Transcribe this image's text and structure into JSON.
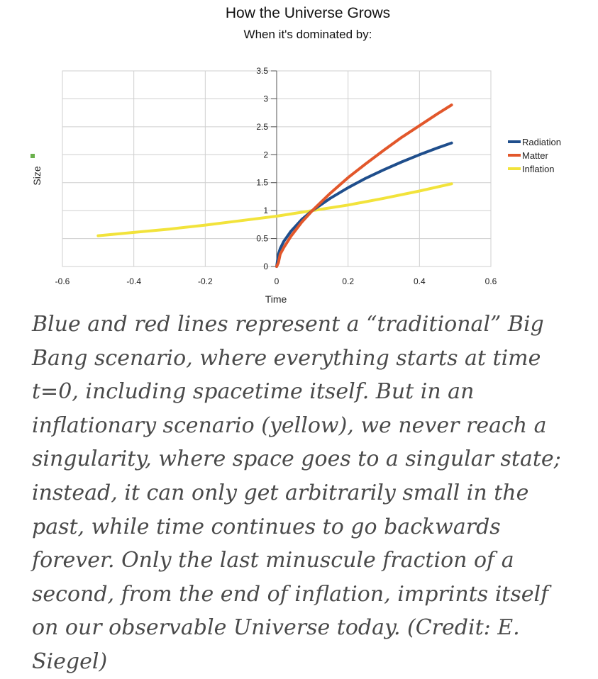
{
  "chart_data": {
    "type": "line",
    "title": "How the Universe Grows",
    "subtitle": "When it's dominated by:",
    "xlabel": "Time",
    "ylabel": "Size",
    "xlim": [
      -0.6,
      0.6
    ],
    "ylim": [
      0,
      3.5
    ],
    "x_ticks": [
      "-0.6",
      "-0.4",
      "-0.2",
      "0",
      "0.2",
      "0.4",
      "0.6"
    ],
    "y_ticks": [
      "0",
      "0.5",
      "1",
      "1.5",
      "2",
      "2.5",
      "3",
      "3.5"
    ],
    "grid": true,
    "legend_position": "right",
    "series": [
      {
        "name": "Radiation",
        "color": "#1f4e8c",
        "points": [
          [
            0,
            0
          ],
          [
            0.005,
            0.22
          ],
          [
            0.01,
            0.32
          ],
          [
            0.02,
            0.45
          ],
          [
            0.04,
            0.63
          ],
          [
            0.07,
            0.84
          ],
          [
            0.1,
            1.0
          ],
          [
            0.15,
            1.22
          ],
          [
            0.2,
            1.41
          ],
          [
            0.25,
            1.58
          ],
          [
            0.3,
            1.73
          ],
          [
            0.35,
            1.87
          ],
          [
            0.4,
            2.0
          ],
          [
            0.45,
            2.12
          ],
          [
            0.49,
            2.21
          ]
        ]
      },
      {
        "name": "Matter",
        "color": "#e2572b",
        "points": [
          [
            0,
            0
          ],
          [
            0.005,
            0.07
          ],
          [
            0.01,
            0.22
          ],
          [
            0.02,
            0.34
          ],
          [
            0.04,
            0.54
          ],
          [
            0.07,
            0.79
          ],
          [
            0.1,
            1.0
          ],
          [
            0.15,
            1.31
          ],
          [
            0.2,
            1.59
          ],
          [
            0.25,
            1.84
          ],
          [
            0.3,
            2.08
          ],
          [
            0.35,
            2.31
          ],
          [
            0.4,
            2.52
          ],
          [
            0.45,
            2.73
          ],
          [
            0.49,
            2.89
          ]
        ]
      },
      {
        "name": "Inflation",
        "color": "#f2e33b",
        "points": [
          [
            -0.5,
            0.55
          ],
          [
            -0.4,
            0.61
          ],
          [
            -0.3,
            0.67
          ],
          [
            -0.2,
            0.74
          ],
          [
            -0.1,
            0.82
          ],
          [
            0,
            0.9
          ],
          [
            0.1,
            1.0
          ],
          [
            0.2,
            1.1
          ],
          [
            0.3,
            1.22
          ],
          [
            0.4,
            1.35
          ],
          [
            0.49,
            1.48
          ]
        ]
      }
    ]
  },
  "caption": "Blue and red lines represent a “traditional” Big Bang scenario, where everything starts at time t=0, including spacetime itself. But in an inflationary scenario (yellow), we never reach a singularity, where space goes to a singular state; instead, it can only get arbitrarily small in the past, while time continues to go backwards forever. Only the last minuscule fraction of a second, from the end of inflation, imprints itself on our observable Universe today. (Credit: E. Siegel)"
}
